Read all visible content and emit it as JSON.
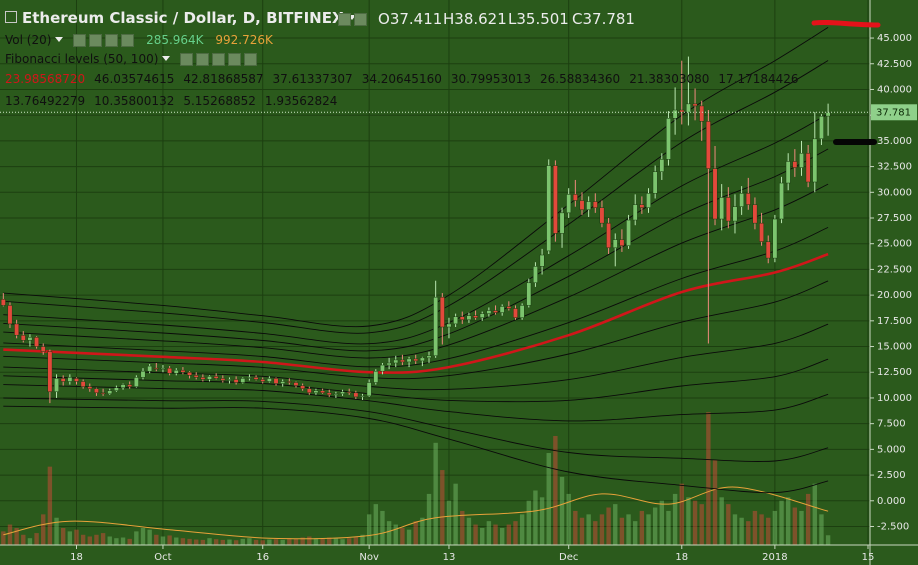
{
  "chart_data": {
    "type": "candlestick",
    "title": "Ethereum Classic / Dollar, D, BITFINEX",
    "ohlc_labels": [
      "O",
      "H",
      "L",
      "C"
    ],
    "up_color": "#7cc46e",
    "down_color": "#e2493b",
    "x": [
      0,
      1,
      2,
      3,
      4,
      5,
      6,
      7,
      8,
      9,
      10,
      11,
      12,
      13,
      14,
      15,
      16,
      17,
      18,
      19,
      20,
      21,
      22,
      23,
      24,
      25,
      26,
      27,
      28,
      29,
      30,
      31,
      32,
      33,
      34,
      35,
      36,
      37,
      38,
      39,
      40,
      41,
      42,
      43,
      44,
      45,
      46,
      47,
      48,
      49,
      50,
      51,
      52,
      53,
      54,
      55,
      56,
      57,
      58,
      59,
      60,
      61,
      62,
      63,
      64,
      65,
      66,
      67,
      68,
      69,
      70,
      71,
      72,
      73,
      74,
      75,
      76,
      77,
      78,
      79,
      80,
      81,
      82,
      83,
      84,
      85,
      86,
      87,
      88,
      89,
      90,
      91,
      92,
      93,
      94,
      95,
      96,
      97,
      98,
      99,
      100,
      101,
      102,
      103,
      104,
      105,
      106,
      107,
      108,
      109,
      110,
      111,
      112,
      113,
      114,
      115,
      116,
      117,
      118,
      119,
      120,
      121,
      122,
      123,
      124
    ],
    "open": [
      19.6,
      19.0,
      17.2,
      16.1,
      15.6,
      15.9,
      15.0,
      14.5,
      10.6,
      11.9,
      11.6,
      11.9,
      11.6,
      11.1,
      10.9,
      10.5,
      10.4,
      10.7,
      11.0,
      11.3,
      11.1,
      12.0,
      12.6,
      12.9,
      12.8,
      12.9,
      12.4,
      12.7,
      12.5,
      12.2,
      12.0,
      11.8,
      12.1,
      11.9,
      11.7,
      11.8,
      11.5,
      11.9,
      12.0,
      11.8,
      11.6,
      11.9,
      11.4,
      11.6,
      11.5,
      11.2,
      10.9,
      10.5,
      10.7,
      10.5,
      10.3,
      10.4,
      10.6,
      10.5,
      10.1,
      10.2,
      11.5,
      12.6,
      13.2,
      13.4,
      13.7,
      13.5,
      13.8,
      13.6,
      13.9,
      14.1,
      19.8,
      16.9,
      17.2,
      17.9,
      17.6,
      18.0,
      17.8,
      18.2,
      18.5,
      18.3,
      18.9,
      18.7,
      17.8,
      19.0,
      21.2,
      22.8,
      24.3,
      32.6,
      26.0,
      28.0,
      29.8,
      29.2,
      28.3,
      29.1,
      28.5,
      27.0,
      24.6,
      25.4,
      24.8,
      27.3,
      28.8,
      28.5,
      29.9,
      32.0,
      33.2,
      37.2,
      38.0,
      37.8,
      38.6,
      38.4,
      36.9,
      32.3,
      27.4,
      29.5,
      27.2,
      28.6,
      29.9,
      28.8,
      27.0,
      25.2,
      23.6,
      27.4,
      30.9,
      33.0,
      32.4,
      33.8,
      31.0,
      35.2,
      37.411
    ],
    "high": [
      20.2,
      19.3,
      17.6,
      16.5,
      16.2,
      16.0,
      15.3,
      14.7,
      12.3,
      12.2,
      12.3,
      12.0,
      11.8,
      11.4,
      11.0,
      10.9,
      10.9,
      11.2,
      11.4,
      11.6,
      12.2,
      12.9,
      13.3,
      13.4,
      13.2,
      13.1,
      12.9,
      13.0,
      12.6,
      12.5,
      12.3,
      12.2,
      12.4,
      12.2,
      12.0,
      12.1,
      12.0,
      12.3,
      12.2,
      12.0,
      12.1,
      12.0,
      11.8,
      11.9,
      11.6,
      11.4,
      11.1,
      10.9,
      10.9,
      10.8,
      10.6,
      10.8,
      10.9,
      10.7,
      10.4,
      11.8,
      12.8,
      13.4,
      13.9,
      14.1,
      14.2,
      14.0,
      14.2,
      14.0,
      14.5,
      21.4,
      20.2,
      17.8,
      18.2,
      18.4,
      18.3,
      18.5,
      18.4,
      18.8,
      19.0,
      19.1,
      19.4,
      19.0,
      19.2,
      21.6,
      23.2,
      24.5,
      33.2,
      33.1,
      28.5,
      30.4,
      31.2,
      30.0,
      29.6,
      29.9,
      29.2,
      27.5,
      26.0,
      26.4,
      27.8,
      29.8,
      29.6,
      30.4,
      32.6,
      33.8,
      37.9,
      40.2,
      42.8,
      43.2,
      40.1,
      38.9,
      38.0,
      34.5,
      30.8,
      30.5,
      29.8,
      30.6,
      31.4,
      29.5,
      28.0,
      25.8,
      27.8,
      31.5,
      33.8,
      34.2,
      35.0,
      34.6,
      37.8,
      37.6,
      38.621
    ],
    "low": [
      18.9,
      16.8,
      15.8,
      15.4,
      15.0,
      14.8,
      14.2,
      9.5,
      10.0,
      11.2,
      11.3,
      11.3,
      10.9,
      10.6,
      10.2,
      10.2,
      10.3,
      10.6,
      10.8,
      10.9,
      11.0,
      11.8,
      12.4,
      12.6,
      12.5,
      12.2,
      12.2,
      12.3,
      11.9,
      11.8,
      11.6,
      11.6,
      11.8,
      11.5,
      11.4,
      11.3,
      11.4,
      11.7,
      11.7,
      11.4,
      11.5,
      11.2,
      11.1,
      11.3,
      11.0,
      10.7,
      10.3,
      10.3,
      10.4,
      10.1,
      10.0,
      10.2,
      10.3,
      9.9,
      9.8,
      10.1,
      11.3,
      12.3,
      12.8,
      13.0,
      13.2,
      13.0,
      13.3,
      13.1,
      13.4,
      13.9,
      15.2,
      15.8,
      16.9,
      17.2,
      17.3,
      17.6,
      17.5,
      17.9,
      18.1,
      18.0,
      18.5,
      17.6,
      17.6,
      18.8,
      20.8,
      22.0,
      24.0,
      25.2,
      24.6,
      27.5,
      28.6,
      27.8,
      27.6,
      28.0,
      26.6,
      24.0,
      22.8,
      24.2,
      24.5,
      26.8,
      27.9,
      28.0,
      29.4,
      31.2,
      32.6,
      35.6,
      36.6,
      36.5,
      37.0,
      35.0,
      15.3,
      26.8,
      26.3,
      26.5,
      26.0,
      27.8,
      28.3,
      26.4,
      24.8,
      23.1,
      23.2,
      27.0,
      30.2,
      31.5,
      31.6,
      30.5,
      30.0,
      34.6,
      35.501
    ],
    "close": [
      19.0,
      17.2,
      16.1,
      15.6,
      15.9,
      15.0,
      14.5,
      10.6,
      11.9,
      11.6,
      12.0,
      11.6,
      11.1,
      10.9,
      10.5,
      10.4,
      10.7,
      11.0,
      11.3,
      11.1,
      12.0,
      12.6,
      13.1,
      12.8,
      12.9,
      12.4,
      12.7,
      12.5,
      12.2,
      12.0,
      11.8,
      12.1,
      11.9,
      11.7,
      11.8,
      11.5,
      11.9,
      12.0,
      11.8,
      11.6,
      11.9,
      11.4,
      11.6,
      11.5,
      11.2,
      10.9,
      10.5,
      10.7,
      10.5,
      10.3,
      10.4,
      10.6,
      10.5,
      10.1,
      10.2,
      11.5,
      12.6,
      13.2,
      13.4,
      13.7,
      13.5,
      13.8,
      13.6,
      13.9,
      14.1,
      19.8,
      16.9,
      17.2,
      17.9,
      17.6,
      18.0,
      17.8,
      18.2,
      18.5,
      18.3,
      18.9,
      18.7,
      17.8,
      19.0,
      21.2,
      22.8,
      23.9,
      32.6,
      26.0,
      28.0,
      29.8,
      29.2,
      28.3,
      29.1,
      28.5,
      27.0,
      24.6,
      25.4,
      24.8,
      27.3,
      28.8,
      28.5,
      29.9,
      32.0,
      33.2,
      37.2,
      38.0,
      37.8,
      38.6,
      38.4,
      36.9,
      32.3,
      27.4,
      29.5,
      27.2,
      28.6,
      29.9,
      28.8,
      27.0,
      25.2,
      23.6,
      27.4,
      30.9,
      33.0,
      32.4,
      33.8,
      31.0,
      35.2,
      37.4,
      37.781
    ],
    "xlim": [
      -0.5,
      130.3
    ],
    "xticks": [
      {
        "value": 11,
        "label": "18"
      },
      {
        "value": 24,
        "label": "Oct"
      },
      {
        "value": 39,
        "label": "16"
      },
      {
        "value": 55,
        "label": "Nov"
      },
      {
        "value": 67,
        "label": "13"
      },
      {
        "value": 85,
        "label": "Dec"
      },
      {
        "value": 102,
        "label": "18"
      },
      {
        "value": 116,
        "label": "2018"
      },
      {
        "value": 130,
        "label": "15"
      }
    ],
    "ylim": [
      -4.3,
      48.7
    ],
    "yticks": [
      {
        "value": -2.5,
        "label": "-2.500"
      },
      {
        "value": 0,
        "label": "0.000"
      },
      {
        "value": 2.5,
        "label": "2.500"
      },
      {
        "value": 5,
        "label": "5.000"
      },
      {
        "value": 7.5,
        "label": "7.500"
      },
      {
        "value": 10,
        "label": "10.000"
      },
      {
        "value": 12.5,
        "label": "12.500"
      },
      {
        "value": 15,
        "label": "15.000"
      },
      {
        "value": 17.5,
        "label": "17.500"
      },
      {
        "value": 20,
        "label": "20.000"
      },
      {
        "value": 22.5,
        "label": "22.500"
      },
      {
        "value": 25,
        "label": "25.000"
      },
      {
        "value": 27.5,
        "label": "27.500"
      },
      {
        "value": 30,
        "label": "30.000"
      },
      {
        "value": 32.5,
        "label": "32.500"
      },
      {
        "value": 35,
        "label": "35.000"
      },
      {
        "value": 37.5,
        "label": "37.500"
      },
      {
        "value": 40,
        "label": "40.000"
      },
      {
        "value": 42.5,
        "label": "42.500"
      },
      {
        "value": 45,
        "label": "45.000"
      }
    ],
    "grid": true,
    "y2lim": [
      0,
      16000
    ],
    "volume": {
      "title": "Vol (20)",
      "color": "#66d08a",
      "values": [
        400,
        600,
        500,
        300,
        200,
        350,
        900,
        2300,
        800,
        500,
        400,
        450,
        300,
        250,
        300,
        350,
        250,
        200,
        220,
        180,
        400,
        500,
        450,
        300,
        250,
        280,
        220,
        200,
        180,
        160,
        150,
        200,
        170,
        150,
        160,
        140,
        180,
        200,
        150,
        140,
        160,
        170,
        150,
        200,
        180,
        220,
        250,
        200,
        180,
        220,
        190,
        170,
        200,
        250,
        300,
        900,
        1200,
        1000,
        700,
        600,
        500,
        450,
        700,
        800,
        1500,
        3000,
        2200,
        1300,
        1800,
        1000,
        800,
        600,
        500,
        700,
        600,
        500,
        600,
        700,
        900,
        1300,
        1600,
        1400,
        2700,
        3200,
        2000,
        1500,
        1000,
        800,
        900,
        700,
        900,
        1100,
        1200,
        800,
        900,
        700,
        1000,
        900,
        1100,
        1300,
        1000,
        1500,
        1800,
        1400,
        1300,
        1200,
        3900,
        2500,
        1400,
        1200,
        900,
        800,
        700,
        1000,
        900,
        800,
        1000,
        1300,
        1400,
        1100,
        1000,
        1500,
        1800,
        900,
        285.964
      ],
      "value_labels": [
        null,
        null,
        null,
        null,
        null,
        null,
        null,
        null,
        null,
        null,
        null,
        null,
        null,
        null,
        null,
        null,
        null,
        null,
        null,
        null,
        null,
        null,
        null,
        null,
        null,
        null,
        null,
        null,
        null,
        null,
        null,
        null,
        null,
        null,
        null,
        null,
        null,
        null,
        null,
        null,
        null,
        null,
        null,
        null,
        null,
        null,
        null,
        null,
        null,
        null,
        null,
        null,
        null,
        null,
        null,
        null,
        null,
        null,
        null,
        null,
        null,
        null,
        null,
        null,
        null,
        null,
        null,
        null,
        null,
        null,
        null,
        null,
        null,
        null,
        null,
        null,
        null,
        null,
        null,
        null,
        null,
        null,
        null,
        null,
        null,
        null,
        null,
        null,
        null,
        null,
        null,
        null,
        null,
        null,
        null,
        null,
        null,
        null,
        null,
        null,
        null,
        null,
        null,
        null,
        null,
        null,
        null,
        null,
        null,
        null,
        null,
        null,
        null,
        null,
        null,
        null,
        null,
        null,
        null,
        null,
        null,
        null,
        null,
        null,
        "285.964K"
      ]
    },
    "volume_ma": {
      "color": "#e8a23a",
      "x": [
        0,
        10,
        25,
        40,
        55,
        65,
        80,
        90,
        100,
        110,
        124
      ],
      "values": [
        300,
        700,
        450,
        200,
        280,
        800,
        1000,
        1500,
        1200,
        1700,
        992.726
      ],
      "value_labels": [
        null,
        null,
        null,
        null,
        null,
        null,
        null,
        null,
        null,
        null,
        "992.726K"
      ]
    },
    "fibonacci": {
      "title": "Fibonacci levels (50, 100)",
      "x": [
        0,
        24,
        39,
        55,
        67,
        85,
        102,
        116,
        124
      ],
      "series": [
        {
          "color": "#d0161a",
          "values": [
            14.7,
            14.0,
            13.5,
            12.5,
            13.0,
            16.1,
            20.3,
            22.2,
            23.9856872
          ],
          "value_labels": [
            null,
            null,
            null,
            null,
            null,
            null,
            null,
            null,
            "23.98568720"
          ]
        },
        {
          "color": "#0a0a0a",
          "values": [
            20.2,
            19.0,
            18.0,
            17.0,
            20.0,
            28.8,
            37.5,
            42.8,
            46.03574615
          ]
        },
        {
          "color": "#0a0a0a",
          "values": [
            19.4,
            18.27,
            17.34,
            16.34,
            18.98,
            26.9,
            34.87,
            39.73,
            42.81868587
          ]
        },
        {
          "color": "#0a0a0a",
          "values": [
            18.1,
            17.09,
            16.28,
            15.28,
            17.33,
            23.83,
            30.62,
            34.78,
            37.61337307
          ]
        },
        {
          "color": "#0a0a0a",
          "values": [
            17.25,
            16.32,
            15.59,
            14.59,
            16.24,
            21.83,
            27.84,
            31.53,
            34.2064516
          ],
          "value_labels": [
            null,
            null,
            null,
            null,
            null,
            null,
            null,
            null,
            "34.20645160"
          ]
        },
        {
          "color": "#0a0a0a",
          "values": [
            16.4,
            15.55,
            14.89,
            13.89,
            15.16,
            19.82,
            25.06,
            28.29,
            30.79953013
          ]
        },
        {
          "color": "#0a0a0a",
          "values": [
            15.35,
            14.59,
            14.03,
            13.03,
            13.83,
            17.33,
            21.62,
            24.28,
            26.5883436
          ],
          "value_labels": [
            null,
            null,
            null,
            null,
            null,
            null,
            null,
            null,
            "26.58834360"
          ]
        },
        {
          "color": "#0a0a0a",
          "values": [
            14.05,
            13.41,
            12.97,
            11.97,
            12.17,
            14.27,
            17.38,
            19.32,
            21.3830308
          ],
          "value_labels": [
            null,
            null,
            null,
            null,
            null,
            null,
            null,
            null,
            "21.38303080"
          ]
        },
        {
          "color": "#0a0a0a",
          "values": [
            13.0,
            12.45,
            12.11,
            11.11,
            10.84,
            11.78,
            13.94,
            15.31,
            17.17184426
          ]
        },
        {
          "color": "#0a0a0a",
          "values": [
            12.15,
            11.68,
            11.41,
            10.41,
            9.76,
            9.77,
            11.16,
            12.07,
            13.76492279
          ]
        },
        {
          "color": "#0a0a0a",
          "values": [
            11.3,
            10.91,
            10.72,
            9.72,
            8.67,
            7.77,
            8.38,
            8.82,
            10.35800132
          ]
        },
        {
          "color": "#0a0a0a",
          "values": [
            10.0,
            9.73,
            9.66,
            8.66,
            7.02,
            4.7,
            4.13,
            3.87,
            5.15268852
          ]
        },
        {
          "color": "#0a0a0a",
          "values": [
            9.2,
            9.0,
            9.0,
            8.0,
            6.0,
            2.8,
            1.5,
            0.8,
            1.93562824
          ]
        }
      ]
    }
  }
}
